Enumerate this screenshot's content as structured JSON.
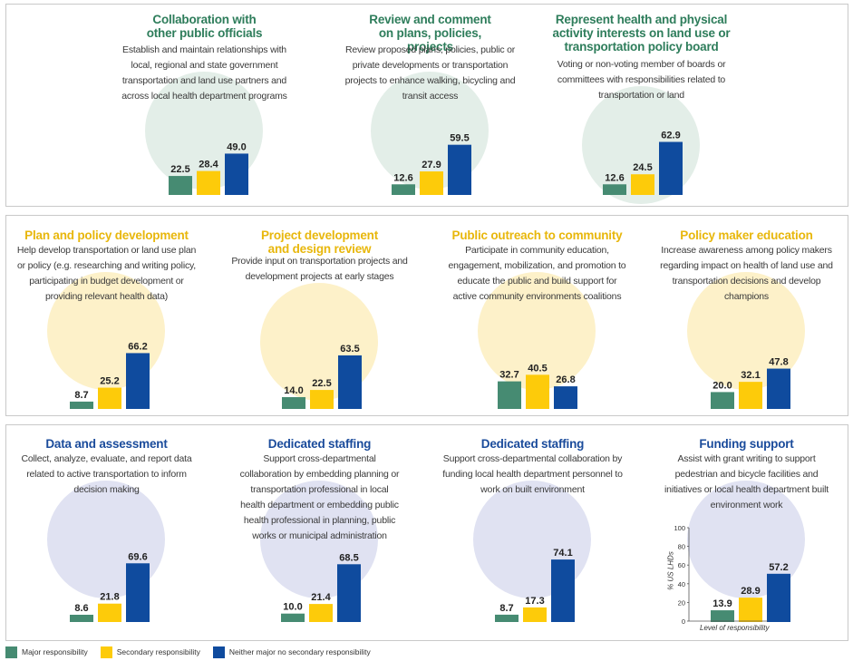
{
  "colors": {
    "major": "#468b72",
    "secondary": "#fdcb0a",
    "neither": "#0f4b9e",
    "title_green": "#2e7d5b",
    "title_yellow": "#e8b70c",
    "title_blue": "#1a4b9b",
    "circle_green": "#e3eee8",
    "circle_yellow": "#fdf1c9",
    "circle_blue": "#e0e2f2"
  },
  "legend": [
    {
      "key": "major",
      "label": "Major responsibility"
    },
    {
      "key": "secondary",
      "label": "Secondary responsibility"
    },
    {
      "key": "neither",
      "label": "Neither major no secondary responsibility"
    }
  ],
  "axis": {
    "ylabel": "% US LHDs",
    "xlabel": "Level of responsibility",
    "ticks": [
      "100",
      "80",
      "60",
      "40",
      "20",
      "0"
    ]
  },
  "chart_data": [
    {
      "type": "bar",
      "title": "Collaboration with other public officials",
      "description": "Establish and maintain relationships with local, regional and state government transportation and land use partners and across local health department programs",
      "categories": [
        "Major responsibility",
        "Secondary responsibility",
        "Neither major no secondary responsibility"
      ],
      "values": [
        22.5,
        28.4,
        49.0
      ],
      "labels": [
        "22.5",
        "28.4",
        "49.0"
      ],
      "ylim": [
        0,
        100
      ],
      "icon": "collaboration-icon"
    },
    {
      "type": "bar",
      "title": "Review and comment on plans, policies, projects",
      "description": "Review proposed plans, policies, public or private developments or transportation projects to enhance walking, bicycling and transit access",
      "categories": [
        "Major responsibility",
        "Secondary responsibility",
        "Neither major no secondary responsibility"
      ],
      "values": [
        12.6,
        27.9,
        59.5
      ],
      "labels": [
        "12.6",
        "27.9",
        "59.5"
      ],
      "ylim": [
        0,
        100
      ],
      "icon": "review-icon"
    },
    {
      "type": "bar",
      "title": "Represent health and physical activity interests on land use or transportation policy board",
      "description": "Voting or non-voting member of boards or committees with responsibilities related to transportation or land",
      "categories": [
        "Major responsibility",
        "Secondary responsibility",
        "Neither major no secondary responsibility"
      ],
      "values": [
        12.6,
        24.5,
        62.9
      ],
      "labels": [
        "12.6",
        "24.5",
        "62.9"
      ],
      "ylim": [
        0,
        100
      ],
      "icon": "board-icon"
    },
    {
      "type": "bar",
      "title": "Plan and policy development",
      "description": "Help develop transportation or land use plan or policy (e.g. researching and writing policy, participating in budget development or providing relevant health data)",
      "categories": [
        "Major responsibility",
        "Secondary responsibility",
        "Neither major no secondary responsibility"
      ],
      "values": [
        8.7,
        25.2,
        66.2
      ],
      "labels": [
        "8.7",
        "25.2",
        "66.2"
      ],
      "ylim": [
        0,
        100
      ],
      "icon": "policy-icon"
    },
    {
      "type": "bar",
      "title": "Project development and design review",
      "description": "Provide input on transportation projects and development projects at early stages",
      "categories": [
        "Major responsibility",
        "Secondary responsibility",
        "Neither major no secondary responsibility"
      ],
      "values": [
        14.0,
        22.5,
        63.5
      ],
      "labels": [
        "14.0",
        "22.5",
        "63.5"
      ],
      "ylim": [
        0,
        100
      ],
      "icon": "lightbulb-icon"
    },
    {
      "type": "bar",
      "title": "Public outreach to community",
      "description": "Participate in community education, engagement, mobilization, and promotion to educate the public and build support for active community environments coalitions",
      "categories": [
        "Major responsibility",
        "Secondary responsibility",
        "Neither major no secondary responsibility"
      ],
      "values": [
        32.7,
        40.5,
        26.8
      ],
      "labels": [
        "32.7",
        "40.5",
        "26.8"
      ],
      "ylim": [
        0,
        100
      ],
      "icon": "outreach-icon"
    },
    {
      "type": "bar",
      "title": "Policy maker education",
      "description": "Increase awareness among policy makers regarding impact on health of land use and transportation decisions and develop champions",
      "categories": [
        "Major responsibility",
        "Secondary responsibility",
        "Neither major no secondary responsibility"
      ],
      "values": [
        20.0,
        32.1,
        47.8
      ],
      "labels": [
        "20.0",
        "32.1",
        "47.8"
      ],
      "ylim": [
        0,
        100
      ],
      "icon": "education-icon"
    },
    {
      "type": "bar",
      "title": "Data and assessment",
      "description": "Collect, analyze, evaluate, and report data related to active transportation to inform decision making",
      "categories": [
        "Major responsibility",
        "Secondary responsibility",
        "Neither major no secondary responsibility"
      ],
      "values": [
        8.6,
        21.8,
        69.6
      ],
      "labels": [
        "8.6",
        "21.8",
        "69.6"
      ],
      "ylim": [
        0,
        100
      ],
      "icon": "report-icon"
    },
    {
      "type": "bar",
      "title": "Dedicated staffing",
      "description": "Support cross-departmental collaboration by embedding planning or transportation professional in local health department or embedding public health professional in planning, public works or municipal administration",
      "categories": [
        "Major responsibility",
        "Secondary responsibility",
        "Neither major no secondary responsibility"
      ],
      "values": [
        10.0,
        21.4,
        68.5
      ],
      "labels": [
        "10.0",
        "21.4",
        "68.5"
      ],
      "ylim": [
        0,
        100
      ],
      "icon": "staffing-icon"
    },
    {
      "type": "bar",
      "title": "Dedicated staffing",
      "description": "Support cross-departmental collaboration by funding local health department personnel to work on built environment",
      "categories": [
        "Major responsibility",
        "Secondary responsibility",
        "Neither major no secondary responsibility"
      ],
      "values": [
        8.7,
        17.3,
        74.1
      ],
      "labels": [
        "8.7",
        "17.3",
        "74.1"
      ],
      "ylim": [
        0,
        100
      ],
      "icon": "network-icon"
    },
    {
      "type": "bar",
      "title": "Funding support",
      "description": "Assist with grant writing to support pedestrian and bicycle facilities and initiatives or local health department built environment work",
      "categories": [
        "Major responsibility",
        "Secondary responsibility",
        "Neither major no secondary responsibility"
      ],
      "values": [
        13.9,
        28.9,
        57.2
      ],
      "labels": [
        "13.9",
        "28.9",
        "57.2"
      ],
      "ylim": [
        0,
        100
      ],
      "icon": "dollar-icon"
    }
  ]
}
